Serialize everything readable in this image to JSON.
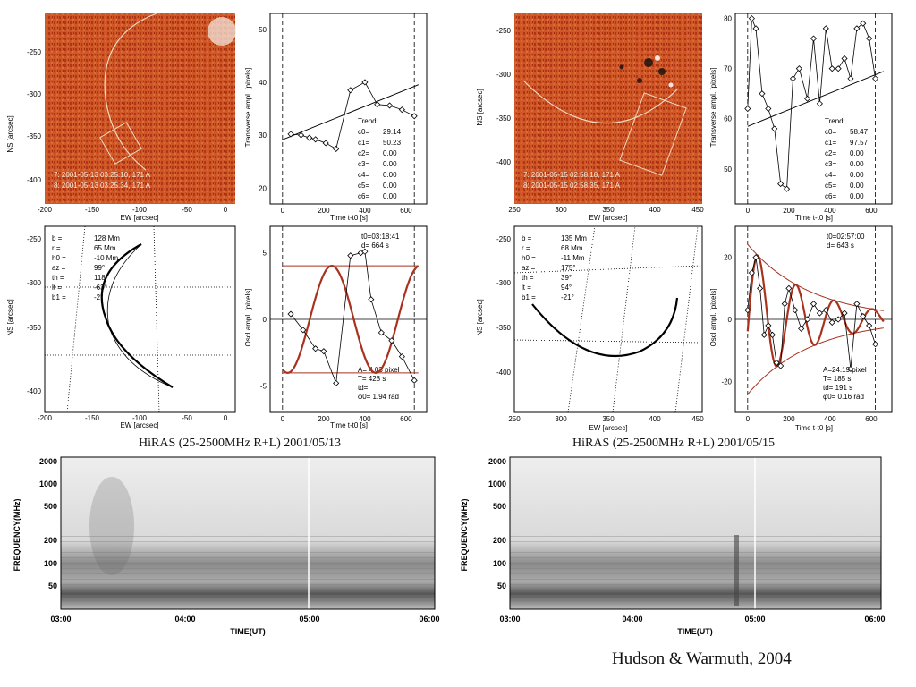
{
  "left": {
    "image_panel": {
      "ylabel": "NS [arcsec]",
      "xlabel": "EW [arcsec]",
      "legend": [
        "7: 2001-05-13 03:25:10, 171 A",
        "8: 2001-05-13 03:25:34, 171 A"
      ],
      "xticks": [
        "-200",
        "-150",
        "-100",
        "-50",
        "0"
      ],
      "yticks": [
        "-250",
        "-300",
        "-350",
        "-400"
      ]
    },
    "trend_panel": {
      "ylabel": "Transverse ampl. [pixels]",
      "xlabel": "Time t-t0 [s]",
      "xticks": [
        "0",
        "200",
        "400",
        "600"
      ],
      "yticks": [
        "20",
        "30",
        "40",
        "50"
      ],
      "trend_title": "Trend:",
      "coeff_labels": [
        "c0=",
        "c1=",
        "c2=",
        "c3=",
        "c4=",
        "c5=",
        "c6="
      ],
      "coeff_values": [
        "29.14",
        "50.23",
        "0.00",
        "0.00",
        "0.00",
        "0.00",
        "0.00"
      ]
    },
    "geometry_panel": {
      "ylabel": "NS [arcsec]",
      "xlabel": "EW [arcsec]",
      "xticks": [
        "-200",
        "-150",
        "-100",
        "-50",
        "0"
      ],
      "yticks": [
        "-250",
        "-300",
        "-350",
        "-400"
      ],
      "params": [
        [
          "b =",
          "128 Mm"
        ],
        [
          "r =",
          "65 Mm"
        ],
        [
          "h0 =",
          "-10 Mm"
        ],
        [
          "az =",
          "99°"
        ],
        [
          "th =",
          "118°"
        ],
        [
          "lt =",
          "-63°"
        ],
        [
          "b1 =",
          "-2°"
        ]
      ]
    },
    "osc_panel": {
      "ylabel": "Oscl ampl. [pixels]",
      "xlabel": "Time t-t0 [s]",
      "xticks": [
        "0",
        "200",
        "400",
        "600"
      ],
      "yticks": [
        "5",
        "0",
        "-5"
      ],
      "top_info": [
        "t0=03:18:41",
        "d= 664 s"
      ],
      "fit_info": [
        "A= 4.03 pixel",
        "T= 428 s",
        "td=",
        "φ0= 1.94 rad"
      ]
    },
    "spectrogram": {
      "title": "HiRAS (25-2500MHz R+L)   2001/05/13",
      "ylabel": "FREQUENCY(MHz)",
      "xlabel": "TIME(UT)",
      "yticks": [
        "2000",
        "1000",
        "500",
        "200",
        "100",
        "50"
      ],
      "xticks": [
        "03:00",
        "04:00",
        "05:00",
        "06:00"
      ]
    }
  },
  "right": {
    "image_panel": {
      "ylabel": "NS [arcsec]",
      "xlabel": "EW [arcsec]",
      "legend": [
        "7: 2001-05-15 02:58:18, 171 A",
        "8: 2001-05-15 02:58:35, 171 A"
      ],
      "xticks": [
        "250",
        "300",
        "350",
        "400",
        "450"
      ],
      "yticks": [
        "-250",
        "-300",
        "-350",
        "-400"
      ]
    },
    "trend_panel": {
      "ylabel": "Transverse ampl. [pixels]",
      "xlabel": "Time t-t0 [s]",
      "xticks": [
        "0",
        "200",
        "400",
        "600"
      ],
      "yticks": [
        "50",
        "60",
        "70",
        "80"
      ],
      "trend_title": "Trend:",
      "coeff_labels": [
        "c0=",
        "c1=",
        "c2=",
        "c3=",
        "c4=",
        "c5=",
        "c6="
      ],
      "coeff_values": [
        "58.47",
        "97.57",
        "0.00",
        "0.00",
        "0.00",
        "0.00",
        "0.00"
      ]
    },
    "geometry_panel": {
      "ylabel": "NS [arcsec]",
      "xlabel": "EW [arcsec]",
      "xticks": [
        "250",
        "300",
        "350",
        "400",
        "450"
      ],
      "yticks": [
        "-250",
        "-300",
        "-350",
        "-400"
      ],
      "params": [
        [
          "b =",
          "135 Mm"
        ],
        [
          "r =",
          "68 Mm"
        ],
        [
          "h0 =",
          "-11 Mm"
        ],
        [
          "az =",
          "175°"
        ],
        [
          "th =",
          "39°"
        ],
        [
          "lt =",
          "94°"
        ],
        [
          "b1 =",
          "-21°"
        ]
      ]
    },
    "osc_panel": {
      "ylabel": "Oscl ampl. [pixels]",
      "xlabel": "Time t-t0 [s]",
      "xticks": [
        "0",
        "200",
        "400",
        "600"
      ],
      "yticks": [
        "20",
        "0",
        "-20"
      ],
      "top_info": [
        "t0=02:57:00",
        "d= 643 s"
      ],
      "fit_info": [
        "A=24.19 pixel",
        "T= 185 s",
        "td= 191 s",
        "φ0= 0.16 rad"
      ]
    },
    "spectrogram": {
      "title": "HiRAS (25-2500MHz R+L)   2001/05/15",
      "ylabel": "FREQUENCY(MHz)",
      "xlabel": "TIME(UT)",
      "yticks": [
        "2000",
        "1000",
        "500",
        "200",
        "100",
        "50"
      ],
      "xticks": [
        "03:00",
        "04:00",
        "05:00",
        "06:00"
      ]
    }
  },
  "credit": "Hudson & Warmuth, 2004",
  "colors": {
    "image_bg": "#c2401a",
    "fit_curve": "#a8321e",
    "axis": "#000000"
  },
  "chart_data": [
    {
      "type": "line",
      "panel": "left-trend",
      "x": [
        40,
        90,
        130,
        160,
        210,
        260,
        330,
        400,
        460,
        520,
        580,
        640
      ],
      "y": [
        30.2,
        30.0,
        29.5,
        29.2,
        28.5,
        27.4,
        38.5,
        40.0,
        35.8,
        35.6,
        34.8,
        33.6
      ],
      "trend": {
        "c0": 29.14,
        "c1": 50.23
      },
      "xlim": [
        -60,
        700
      ],
      "ylim": [
        17,
        53
      ]
    },
    {
      "type": "line",
      "panel": "left-osc",
      "x": [
        40,
        100,
        160,
        200,
        260,
        330,
        380,
        400,
        430,
        480,
        530,
        580,
        640
      ],
      "y": [
        0.4,
        -0.8,
        -2.2,
        -2.4,
        -4.8,
        4.8,
        5.0,
        5.1,
        1.5,
        -1.0,
        -1.6,
        -2.8,
        -4.6
      ],
      "fit": {
        "A": 4.03,
        "T": 428,
        "phi0": 1.94
      },
      "xlim": [
        -60,
        700
      ],
      "ylim": [
        -7,
        7
      ]
    },
    {
      "type": "line",
      "panel": "right-trend",
      "x": [
        0,
        20,
        40,
        70,
        100,
        130,
        160,
        190,
        220,
        250,
        290,
        320,
        350,
        380,
        410,
        440,
        470,
        500,
        530,
        560,
        590,
        620
      ],
      "y": [
        62,
        80,
        78,
        65,
        62,
        58,
        47,
        46,
        68,
        70,
        64,
        76,
        63,
        78,
        70,
        70,
        72,
        68,
        78,
        79,
        76,
        68
      ],
      "trend": {
        "c0": 58.47,
        "c1": 97.57
      },
      "xlim": [
        -60,
        700
      ],
      "ylim": [
        43,
        81
      ]
    },
    {
      "type": "line",
      "panel": "right-osc",
      "x": [
        0,
        20,
        40,
        60,
        80,
        100,
        120,
        140,
        160,
        180,
        200,
        230,
        260,
        290,
        320,
        350,
        380,
        410,
        440,
        470,
        500,
        530,
        560,
        590,
        620
      ],
      "y": [
        3,
        15,
        20,
        10,
        -5,
        -2,
        -5,
        -14,
        -15,
        5,
        10,
        3,
        -3,
        0,
        5,
        2,
        3,
        -1,
        0,
        2,
        -16,
        5,
        1,
        -2,
        -8
      ],
      "fit": {
        "A": 24.19,
        "T": 185,
        "td": 191,
        "phi0": 0.16
      },
      "xlim": [
        -60,
        700
      ],
      "ylim": [
        -30,
        30
      ]
    }
  ]
}
